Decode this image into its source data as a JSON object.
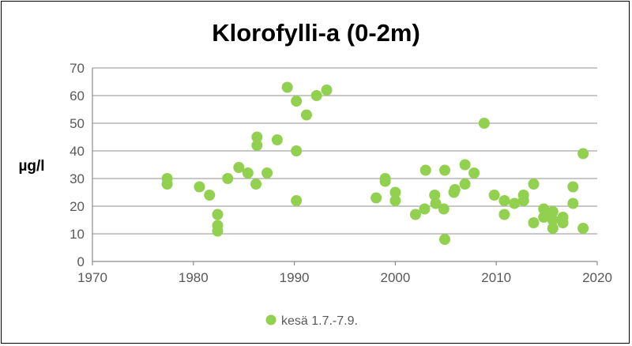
{
  "chart_data": {
    "type": "scatter",
    "title": "Klorofylli-a (0-2m)",
    "xlabel": "",
    "ylabel": "µg/l",
    "xlim": [
      1970,
      2020
    ],
    "ylim": [
      0,
      70
    ],
    "x_ticks": [
      "1970",
      "1980",
      "1990",
      "2000",
      "2010",
      "2020"
    ],
    "y_ticks": [
      "0",
      "10",
      "20",
      "30",
      "40",
      "50",
      "60",
      "70"
    ],
    "grid": "horizontal",
    "legend_position": "bottom",
    "marker_color": "#92D050",
    "series": [
      {
        "name": "kesä 1.7.-7.9.",
        "points": [
          [
            1977.4,
            28
          ],
          [
            1977.4,
            30
          ],
          [
            1980.6,
            27
          ],
          [
            1981.6,
            24
          ],
          [
            1982.4,
            17
          ],
          [
            1982.4,
            13
          ],
          [
            1982.4,
            11
          ],
          [
            1983.4,
            30
          ],
          [
            1984.5,
            34
          ],
          [
            1985.4,
            32
          ],
          [
            1986.3,
            45
          ],
          [
            1986.3,
            42
          ],
          [
            1986.2,
            28
          ],
          [
            1987.3,
            32
          ],
          [
            1988.3,
            44
          ],
          [
            1989.3,
            63
          ],
          [
            1990.2,
            58
          ],
          [
            1990.2,
            40
          ],
          [
            1990.2,
            22
          ],
          [
            1991.2,
            53
          ],
          [
            1992.2,
            60
          ],
          [
            1993.2,
            62
          ],
          [
            1998.1,
            23
          ],
          [
            1999.0,
            30
          ],
          [
            1999.0,
            29
          ],
          [
            2000.0,
            25
          ],
          [
            2000.0,
            22
          ],
          [
            2002.0,
            17
          ],
          [
            2002.9,
            19
          ],
          [
            2003.0,
            33
          ],
          [
            2003.9,
            24
          ],
          [
            2004.0,
            21
          ],
          [
            2004.8,
            19
          ],
          [
            2004.9,
            33
          ],
          [
            2004.9,
            8
          ],
          [
            2005.8,
            25
          ],
          [
            2005.9,
            26
          ],
          [
            2006.9,
            28
          ],
          [
            2006.9,
            35
          ],
          [
            2007.8,
            32
          ],
          [
            2008.8,
            50
          ],
          [
            2009.8,
            24
          ],
          [
            2010.8,
            22
          ],
          [
            2010.8,
            17
          ],
          [
            2011.8,
            21
          ],
          [
            2012.7,
            22
          ],
          [
            2012.7,
            24
          ],
          [
            2013.7,
            28
          ],
          [
            2013.7,
            14
          ],
          [
            2014.7,
            19
          ],
          [
            2014.7,
            16
          ],
          [
            2015.6,
            18
          ],
          [
            2015.6,
            15
          ],
          [
            2015.6,
            12
          ],
          [
            2016.6,
            16
          ],
          [
            2016.6,
            14
          ],
          [
            2017.6,
            27
          ],
          [
            2017.6,
            21
          ],
          [
            2018.6,
            39
          ],
          [
            2018.6,
            12
          ]
        ]
      }
    ]
  }
}
